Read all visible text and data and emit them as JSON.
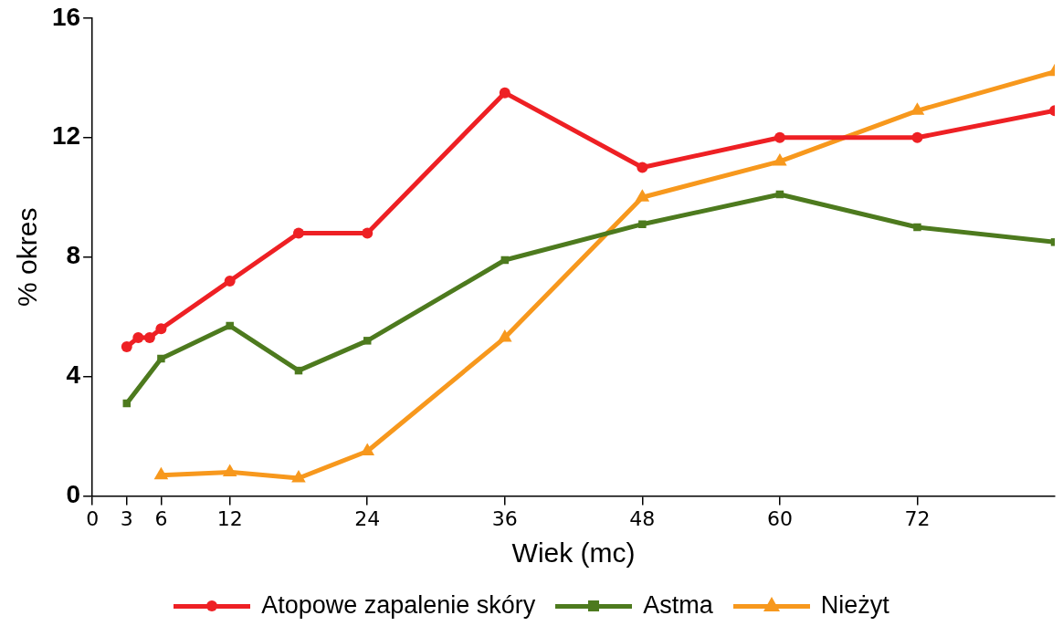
{
  "chart_data": {
    "type": "line",
    "xlabel": "Wiek (mc)",
    "ylabel": "% okres",
    "xlim": [
      0,
      84
    ],
    "xticks": [
      0,
      3,
      6,
      12,
      24,
      36,
      48,
      60,
      72
    ],
    "ylim": [
      0,
      16
    ],
    "yticks": [
      0,
      4,
      8,
      12,
      16
    ],
    "grid": false,
    "legend": "bottom",
    "line_style": "solid",
    "series": [
      {
        "name": "Atopowe zapalenie skóry",
        "color": "#ee2024",
        "marker": "circle",
        "x": [
          3,
          4,
          5,
          6,
          12,
          18,
          24,
          36,
          48,
          60,
          72,
          84
        ],
        "values": [
          5.0,
          5.3,
          5.3,
          5.6,
          7.2,
          8.8,
          8.8,
          13.5,
          11.0,
          12.0,
          12.0,
          12.9
        ]
      },
      {
        "name": "Astma",
        "color": "#4d7a1e",
        "marker": "square",
        "x": [
          3,
          6,
          12,
          18,
          24,
          36,
          48,
          60,
          72,
          84
        ],
        "values": [
          3.1,
          4.6,
          5.7,
          4.2,
          5.2,
          7.9,
          9.1,
          10.1,
          9.0,
          8.5
        ]
      },
      {
        "name": "Nieżyt",
        "color": "#f7981d",
        "marker": "triangle",
        "x": [
          6,
          12,
          18,
          24,
          36,
          48,
          60,
          72,
          84
        ],
        "values": [
          0.7,
          0.8,
          0.6,
          1.5,
          5.3,
          10.0,
          11.2,
          12.9,
          14.2
        ]
      }
    ]
  }
}
